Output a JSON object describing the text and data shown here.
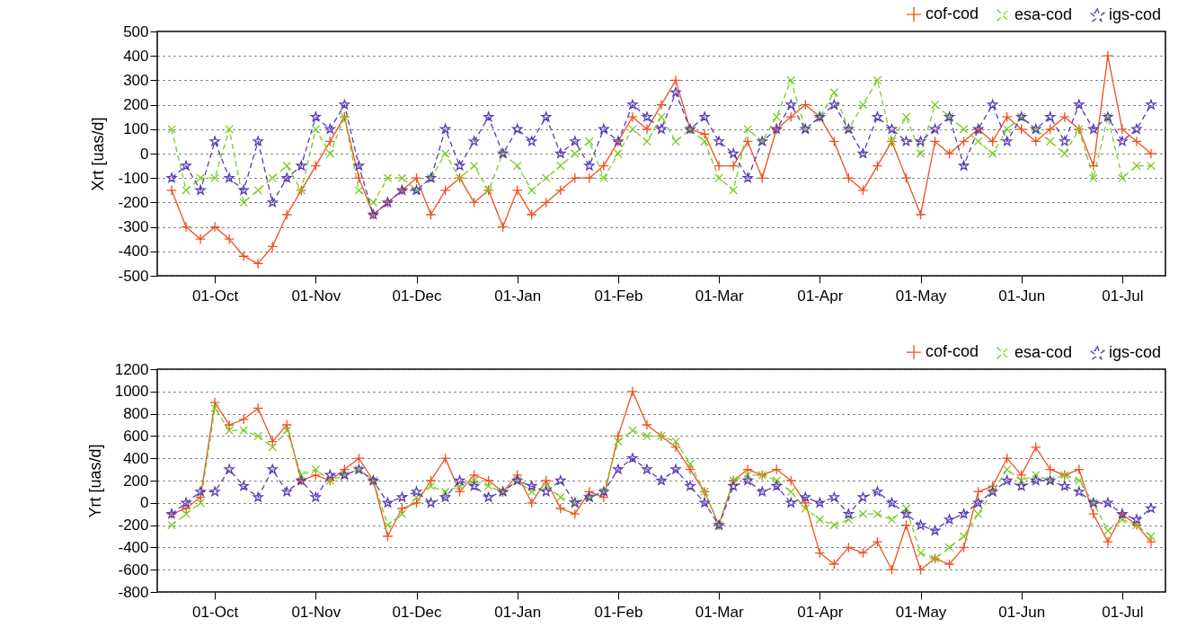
{
  "chart_data": [
    {
      "type": "line",
      "ylabel": "Xrt [uas/d]",
      "grid": "y",
      "legend": "top right",
      "categories": [
        null,
        null,
        null,
        "01-Oct",
        null,
        null,
        null,
        null,
        null,
        null,
        "01-Nov",
        null,
        null,
        null,
        null,
        null,
        null,
        "01-Dec",
        null,
        null,
        null,
        null,
        null,
        null,
        "01-Jan",
        null,
        null,
        null,
        null,
        null,
        null,
        "01-Feb",
        null,
        null,
        null,
        null,
        null,
        null,
        "01-Mar",
        null,
        null,
        null,
        null,
        null,
        null,
        "01-Apr",
        null,
        null,
        null,
        null,
        null,
        null,
        "01-May",
        null,
        null,
        null,
        null,
        null,
        null,
        "01-Jun",
        null,
        null,
        null,
        null,
        null,
        null,
        "01-Jul",
        null,
        null
      ],
      "ylim": [
        -500,
        500
      ],
      "yticks": [
        -500,
        -400,
        -300,
        -200,
        -100,
        0,
        100,
        200,
        300,
        400,
        500
      ],
      "series": [
        {
          "name": "cof-cod",
          "color": "#f0501e",
          "marker": "cross",
          "line_style": "solid",
          "values": [
            -150,
            -300,
            -350,
            -300,
            -350,
            -420,
            -450,
            -380,
            -250,
            -150,
            -50,
            50,
            150,
            -100,
            -250,
            -200,
            -150,
            -100,
            -250,
            -150,
            -100,
            -200,
            -150,
            -300,
            -150,
            -250,
            -200,
            -150,
            -100,
            -100,
            -50,
            50,
            150,
            100,
            200,
            300,
            100,
            80,
            -50,
            -50,
            50,
            -100,
            100,
            150,
            200,
            150,
            50,
            -100,
            -150,
            -50,
            50,
            -100,
            -250,
            50,
            0,
            50,
            100,
            50,
            150,
            100,
            50,
            100,
            150,
            100,
            -50,
            400,
            100,
            50,
            0
          ]
        },
        {
          "name": "esa-cod",
          "color": "#77cc22",
          "marker": "x",
          "line_style": "dashed",
          "values": [
            100,
            -150,
            -100,
            -100,
            100,
            -200,
            -150,
            -100,
            -50,
            -150,
            100,
            0,
            150,
            -150,
            -200,
            -100,
            -100,
            -150,
            -100,
            0,
            -100,
            -50,
            -150,
            0,
            -50,
            -150,
            -100,
            -50,
            0,
            50,
            -100,
            0,
            100,
            50,
            150,
            50,
            100,
            50,
            -100,
            -150,
            100,
            50,
            150,
            300,
            100,
            150,
            250,
            100,
            200,
            300,
            50,
            150,
            0,
            200,
            150,
            100,
            50,
            0,
            100,
            150,
            100,
            50,
            0,
            100,
            -100,
            150,
            -100,
            -50,
            -50
          ]
        },
        {
          "name": "igs-cod",
          "color": "#5a3ab4",
          "marker": "star",
          "line_style": "dashed",
          "values": [
            -100,
            -50,
            -150,
            50,
            -100,
            -150,
            50,
            -200,
            -100,
            -50,
            150,
            100,
            200,
            -50,
            -250,
            -200,
            -150,
            -150,
            -100,
            100,
            -50,
            50,
            150,
            0,
            100,
            50,
            150,
            0,
            50,
            -50,
            100,
            50,
            200,
            150,
            100,
            250,
            100,
            150,
            50,
            0,
            -100,
            50,
            100,
            200,
            100,
            150,
            200,
            100,
            0,
            150,
            100,
            50,
            50,
            100,
            150,
            -50,
            100,
            200,
            50,
            150,
            100,
            150,
            50,
            200,
            100,
            150,
            50,
            100,
            200
          ]
        }
      ]
    },
    {
      "type": "line",
      "ylabel": "Yrt [uas/d]",
      "grid": "y",
      "legend": "top right",
      "categories": [
        null,
        null,
        null,
        "01-Oct",
        null,
        null,
        null,
        null,
        null,
        null,
        "01-Nov",
        null,
        null,
        null,
        null,
        null,
        null,
        "01-Dec",
        null,
        null,
        null,
        null,
        null,
        null,
        "01-Jan",
        null,
        null,
        null,
        null,
        null,
        null,
        "01-Feb",
        null,
        null,
        null,
        null,
        null,
        null,
        "01-Mar",
        null,
        null,
        null,
        null,
        null,
        null,
        "01-Apr",
        null,
        null,
        null,
        null,
        null,
        null,
        "01-May",
        null,
        null,
        null,
        null,
        null,
        null,
        "01-Jun",
        null,
        null,
        null,
        null,
        null,
        null,
        "01-Jul",
        null,
        null
      ],
      "ylim": [
        -800,
        1200
      ],
      "yticks": [
        -800,
        -600,
        -400,
        -200,
        0,
        200,
        400,
        600,
        800,
        1000,
        1200
      ],
      "series": [
        {
          "name": "cof-cod",
          "color": "#f0501e",
          "marker": "cross",
          "line_style": "solid",
          "values": [
            -100,
            -50,
            50,
            900,
            700,
            750,
            850,
            550,
            700,
            200,
            250,
            200,
            300,
            400,
            200,
            -300,
            -50,
            0,
            200,
            400,
            100,
            250,
            200,
            100,
            250,
            0,
            200,
            -50,
            -100,
            100,
            50,
            600,
            1000,
            700,
            600,
            500,
            300,
            100,
            -200,
            200,
            300,
            250,
            300,
            200,
            0,
            -450,
            -550,
            -400,
            -450,
            -350,
            -600,
            -200,
            -600,
            -500,
            -550,
            -400,
            100,
            150,
            400,
            250,
            500,
            300,
            250,
            300,
            -100,
            -350,
            -100,
            -200,
            -350
          ]
        },
        {
          "name": "esa-cod",
          "color": "#77cc22",
          "marker": "x",
          "line_style": "dashed",
          "values": [
            -200,
            -100,
            0,
            850,
            650,
            650,
            600,
            500,
            650,
            250,
            300,
            200,
            250,
            300,
            200,
            -200,
            -100,
            50,
            150,
            100,
            150,
            200,
            150,
            100,
            200,
            100,
            150,
            50,
            0,
            50,
            100,
            550,
            650,
            600,
            600,
            550,
            350,
            100,
            -200,
            200,
            250,
            250,
            200,
            100,
            -50,
            -150,
            -200,
            -150,
            -100,
            -100,
            -150,
            -50,
            -450,
            -500,
            -400,
            -300,
            -100,
            100,
            300,
            200,
            250,
            200,
            250,
            200,
            0,
            -250,
            -150,
            -200,
            -300
          ]
        },
        {
          "name": "igs-cod",
          "color": "#5a3ab4",
          "marker": "star",
          "line_style": "dashed",
          "values": [
            -100,
            0,
            100,
            100,
            300,
            150,
            50,
            300,
            100,
            200,
            50,
            250,
            250,
            300,
            200,
            0,
            50,
            100,
            0,
            50,
            200,
            150,
            50,
            100,
            200,
            150,
            100,
            200,
            0,
            50,
            100,
            300,
            400,
            300,
            200,
            300,
            150,
            0,
            -200,
            150,
            200,
            100,
            150,
            0,
            50,
            0,
            50,
            -100,
            50,
            100,
            0,
            -100,
            -200,
            -250,
            -150,
            -100,
            0,
            100,
            200,
            150,
            200,
            200,
            150,
            100,
            0,
            0,
            -100,
            -150,
            -50
          ]
        }
      ]
    }
  ]
}
